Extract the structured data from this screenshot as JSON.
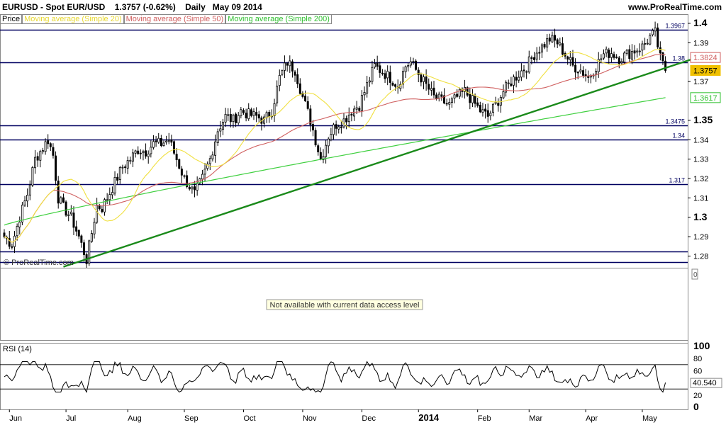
{
  "header": {
    "instrument": "EURUSD - Spot EUR/USD",
    "quote": "1.3757 (-0.62%)",
    "period": "Daily",
    "date": "May 09 2014",
    "brand": "www.ProRealTime.com"
  },
  "legend": {
    "price": "Price",
    "ma20": "Moving average (Simple 20)",
    "ma50": "Moving average (Simple 50)",
    "ma200": "Moving average (Simple 200)"
  },
  "colors": {
    "ma20": "#f0e040",
    "ma50": "#d06060",
    "ma200": "#40d040",
    "trend": "#1a8a1a",
    "hline": "#000060",
    "candle": "#000000",
    "rsi": "#000000"
  },
  "watermark": "© ProRealTime.com",
  "volume_panel": {
    "message": "Not available with current data access level",
    "axis_label": "0"
  },
  "rsi_panel": {
    "label": "RSI (14)",
    "value": 40.54,
    "value_label": "40.540",
    "ticks": [
      "100",
      "80",
      "60",
      "20",
      "0"
    ],
    "tick_values": [
      100,
      80,
      60,
      20,
      0
    ],
    "levels": [
      30,
      70
    ]
  },
  "chart_data": {
    "type": "candlestick",
    "ylim": [
      1.274,
      1.404
    ],
    "y_ticks": [
      {
        "value": 1.4,
        "label": "1.4"
      },
      {
        "value": 1.39,
        "label": "1.39"
      },
      {
        "value": 1.37,
        "label": "1.37"
      },
      {
        "value": 1.35,
        "label": "1.35"
      },
      {
        "value": 1.34,
        "label": "1.34"
      },
      {
        "value": 1.33,
        "label": "1.33"
      },
      {
        "value": 1.32,
        "label": "1.32"
      },
      {
        "value": 1.31,
        "label": "1.31"
      },
      {
        "value": 1.3,
        "label": "1.3"
      },
      {
        "value": 1.29,
        "label": "1.29"
      },
      {
        "value": 1.28,
        "label": "1.28"
      }
    ],
    "major_ticks": [
      "1.4",
      "1.35",
      "1.3"
    ],
    "horizontal_levels": [
      {
        "value": 1.3967,
        "label": "1.3967"
      },
      {
        "value": 1.38,
        "label": "1.38"
      },
      {
        "value": 1.3475,
        "label": "1.3475"
      },
      {
        "value": 1.34,
        "label": "1.34"
      },
      {
        "value": 1.317,
        "label": "1.317"
      },
      {
        "value": 1.2825,
        "label": ""
      },
      {
        "value": 1.277,
        "label": ""
      }
    ],
    "x_labels": [
      "Jun",
      "Jul",
      "Aug",
      "Sep",
      "Oct",
      "Nov",
      "Dec",
      "2014",
      "Feb",
      "Mar",
      "Apr",
      "May"
    ],
    "x_label_days": [
      2,
      24,
      48,
      70,
      93,
      116,
      139,
      161,
      184,
      204,
      226,
      248
    ],
    "total_days": 264,
    "close_path": [
      [
        0,
        1.29
      ],
      [
        3,
        1.286
      ],
      [
        6,
        1.3
      ],
      [
        9,
        1.312
      ],
      [
        12,
        1.33
      ],
      [
        15,
        1.336
      ],
      [
        17,
        1.34
      ],
      [
        19,
        1.332
      ],
      [
        21,
        1.31
      ],
      [
        23,
        1.305
      ],
      [
        26,
        1.3
      ],
      [
        29,
        1.29
      ],
      [
        32,
        1.278
      ],
      [
        34,
        1.292
      ],
      [
        36,
        1.306
      ],
      [
        38,
        1.305
      ],
      [
        40,
        1.31
      ],
      [
        43,
        1.318
      ],
      [
        46,
        1.326
      ],
      [
        49,
        1.33
      ],
      [
        52,
        1.335
      ],
      [
        55,
        1.334
      ],
      [
        58,
        1.338
      ],
      [
        61,
        1.338
      ],
      [
        64,
        1.34
      ],
      [
        67,
        1.33
      ],
      [
        70,
        1.32
      ],
      [
        72,
        1.316
      ],
      [
        74,
        1.312
      ],
      [
        77,
        1.32
      ],
      [
        80,
        1.33
      ],
      [
        83,
        1.345
      ],
      [
        86,
        1.352
      ],
      [
        89,
        1.35
      ],
      [
        92,
        1.355
      ],
      [
        95,
        1.353
      ],
      [
        98,
        1.352
      ],
      [
        101,
        1.35
      ],
      [
        104,
        1.355
      ],
      [
        107,
        1.372
      ],
      [
        110,
        1.38
      ],
      [
        113,
        1.376
      ],
      [
        116,
        1.362
      ],
      [
        119,
        1.35
      ],
      [
        121,
        1.34
      ],
      [
        123,
        1.33
      ],
      [
        126,
        1.342
      ],
      [
        129,
        1.348
      ],
      [
        132,
        1.35
      ],
      [
        135,
        1.355
      ],
      [
        138,
        1.358
      ],
      [
        141,
        1.368
      ],
      [
        144,
        1.378
      ],
      [
        147,
        1.375
      ],
      [
        150,
        1.372
      ],
      [
        153,
        1.368
      ],
      [
        156,
        1.378
      ],
      [
        158,
        1.38
      ],
      [
        161,
        1.374
      ],
      [
        164,
        1.368
      ],
      [
        167,
        1.362
      ],
      [
        170,
        1.36
      ],
      [
        173,
        1.358
      ],
      [
        176,
        1.362
      ],
      [
        179,
        1.365
      ],
      [
        182,
        1.36
      ],
      [
        185,
        1.355
      ],
      [
        188,
        1.352
      ],
      [
        191,
        1.358
      ],
      [
        194,
        1.365
      ],
      [
        197,
        1.37
      ],
      [
        200,
        1.374
      ],
      [
        203,
        1.378
      ],
      [
        206,
        1.384
      ],
      [
        209,
        1.388
      ],
      [
        212,
        1.392
      ],
      [
        215,
        1.39
      ],
      [
        218,
        1.384
      ],
      [
        221,
        1.378
      ],
      [
        224,
        1.376
      ],
      [
        227,
        1.372
      ],
      [
        230,
        1.378
      ],
      [
        233,
        1.384
      ],
      [
        236,
        1.385
      ],
      [
        239,
        1.382
      ],
      [
        242,
        1.384
      ],
      [
        245,
        1.386
      ],
      [
        248,
        1.388
      ],
      [
        251,
        1.393
      ],
      [
        253,
        1.395
      ],
      [
        255,
        1.382
      ],
      [
        257,
        1.3757
      ]
    ],
    "series": [
      {
        "name": "Moving average (Simple 20)",
        "last": 1.3824,
        "label": "1.3824"
      },
      {
        "name": "Moving average (Simple 50)",
        "last": 1.3824,
        "label": "1.3824"
      },
      {
        "name": "Moving average (Simple 200)",
        "last": 1.3617,
        "label": "1.3617"
      },
      {
        "name": "Price",
        "last": 1.3757,
        "label": "1.3757"
      }
    ],
    "trendline": [
      [
        23,
        1.2745
      ],
      [
        273,
        1.384
      ]
    ]
  }
}
